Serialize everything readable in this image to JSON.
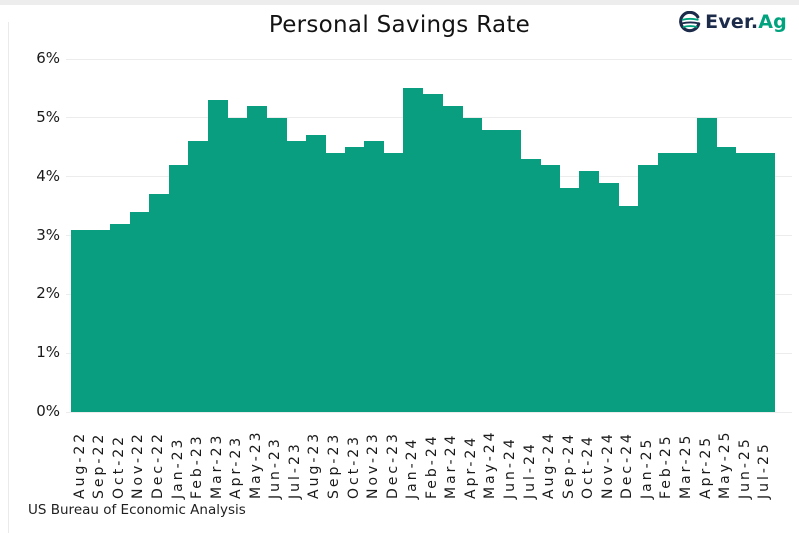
{
  "header": {
    "title": "Personal Savings Rate",
    "logo": {
      "icon": "everag-globe-icon",
      "text_primary": "Ever.",
      "text_accent": "Ag"
    }
  },
  "footer": {
    "source": "US Bureau of Economic Analysis"
  },
  "colors": {
    "bar": "#0a9e80",
    "logo_navy": "#1c2b4a",
    "logo_teal": "#00a37e",
    "grid": "#ececec",
    "text": "#1a1a1a"
  },
  "chart_data": {
    "type": "bar",
    "title": "Personal Savings Rate",
    "xlabel": "",
    "ylabel": "",
    "ylim": [
      0,
      6
    ],
    "yticks": [
      "0%",
      "1%",
      "2%",
      "3%",
      "4%",
      "5%",
      "6%"
    ],
    "grid": true,
    "legend": false,
    "categories": [
      "Aug-22",
      "Sep-22",
      "Oct-22",
      "Nov-22",
      "Dec-22",
      "Jan-23",
      "Feb-23",
      "Mar-23",
      "Apr-23",
      "May-23",
      "Jun-23",
      "Jul-23",
      "Aug-23",
      "Sep-23",
      "Oct-23",
      "Nov-23",
      "Dec-23",
      "Jan-24",
      "Feb-24",
      "Mar-24",
      "Apr-24",
      "May-24",
      "Jun-24",
      "Jul-24",
      "Aug-24",
      "Sep-24",
      "Oct-24",
      "Nov-24",
      "Dec-24",
      "Jan-25",
      "Feb-25",
      "Mar-25",
      "Apr-25",
      "May-25",
      "Jun-25",
      "Jul-25"
    ],
    "values": [
      3.1,
      3.1,
      3.2,
      3.4,
      3.7,
      4.2,
      4.6,
      5.3,
      5.0,
      5.2,
      5.0,
      4.6,
      4.7,
      4.4,
      4.5,
      4.6,
      4.4,
      5.5,
      5.4,
      5.2,
      5.0,
      4.8,
      4.8,
      4.3,
      4.2,
      3.8,
      4.1,
      3.9,
      3.5,
      4.2,
      4.4,
      4.4,
      5.0,
      4.5,
      4.4,
      4.4
    ]
  }
}
